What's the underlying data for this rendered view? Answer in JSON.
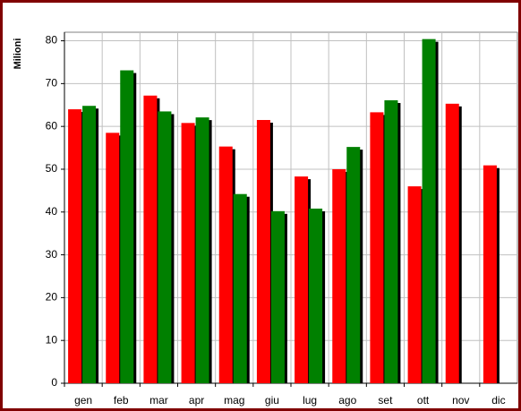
{
  "chart_data": {
    "type": "bar",
    "y_label": "Milioni",
    "categories": [
      "gen",
      "feb",
      "mar",
      "apr",
      "mag",
      "giu",
      "lug",
      "ago",
      "set",
      "ott",
      "nov",
      "dic"
    ],
    "series": [
      {
        "color": "#ff0000",
        "values": [
          64,
          58.5,
          67.2,
          60.8,
          55.3,
          61.5,
          48.3,
          50,
          63.3,
          46,
          65.3,
          50.9
        ]
      },
      {
        "color": "#008000",
        "values": [
          64.8,
          73.1,
          63.5,
          62.1,
          44.2,
          40.2,
          40.8,
          55.2,
          66.1,
          80.4,
          null,
          null
        ]
      }
    ],
    "ylim": [
      0,
      82
    ],
    "yticks": [
      0,
      10,
      20,
      30,
      40,
      50,
      60,
      70,
      80
    ],
    "grid": true
  }
}
